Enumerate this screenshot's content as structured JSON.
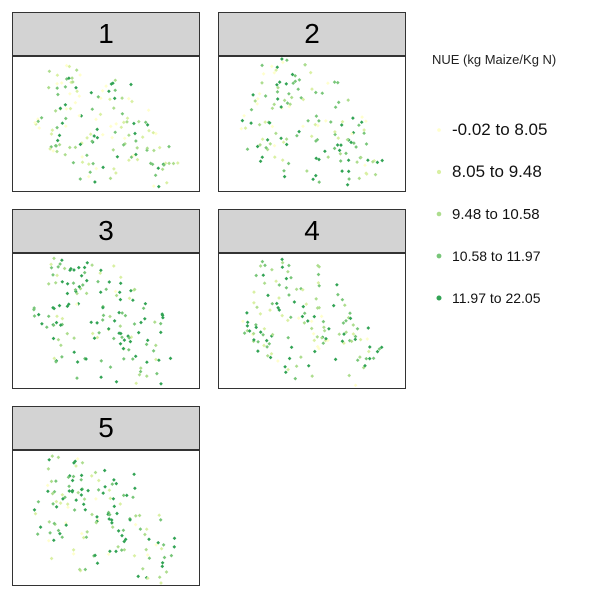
{
  "legend": {
    "title": "NUE (kg Maize/Kg N)",
    "items": [
      {
        "label": "-0.02 to 8.05",
        "color": "#ffffcc"
      },
      {
        "label": "8.05 to 9.48",
        "color": "#d9f0a3"
      },
      {
        "label": "9.48 to 10.58",
        "color": "#addd8e"
      },
      {
        "label": "10.58 to 11.97",
        "color": "#78c679"
      },
      {
        "label": "11.97 to 22.05",
        "color": "#31a354"
      }
    ]
  },
  "chart_data": {
    "type": "scatter",
    "panels": [
      {
        "label": "1",
        "seed": 11,
        "bias": 0.0
      },
      {
        "label": "2",
        "seed": 23,
        "bias": 0.35
      },
      {
        "label": "3",
        "seed": 37,
        "bias": 0.55
      },
      {
        "label": "4",
        "seed": 51,
        "bias": 0.45
      },
      {
        "label": "5",
        "seed": 67,
        "bias": 0.4
      }
    ]
  }
}
